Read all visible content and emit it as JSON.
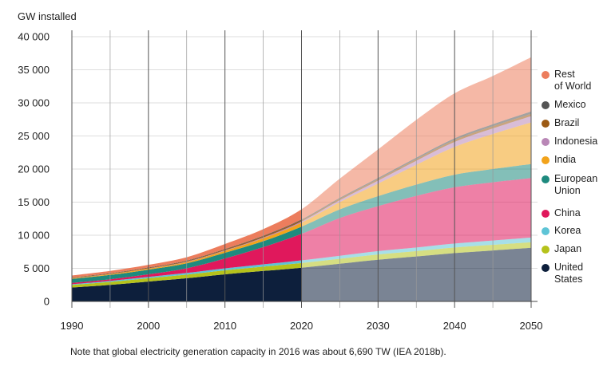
{
  "chart_data": {
    "type": "area",
    "stacked": true,
    "ylabel": "GW installed",
    "xlabel": "",
    "xlim": [
      1990,
      2050
    ],
    "ylim": [
      0,
      40000
    ],
    "x_ticks": [
      "1990",
      "2000",
      "2010",
      "2020",
      "2030",
      "2040",
      "2050"
    ],
    "y_ticks": [
      "0",
      "5 000",
      "10 000",
      "15 000",
      "20 000",
      "25 000",
      "30 000",
      "35 000",
      "40 000"
    ],
    "projection_start": 2020,
    "x": [
      1990,
      1995,
      2000,
      2005,
      2010,
      2015,
      2020,
      2025,
      2030,
      2035,
      2040,
      2045,
      2050
    ],
    "series": [
      {
        "name": "United States",
        "color": "#0d1f3c",
        "values": [
          2100,
          2500,
          3000,
          3500,
          4100,
          4600,
          5100,
          5700,
          6300,
          6800,
          7300,
          7700,
          8100
        ]
      },
      {
        "name": "Japan",
        "color": "#b5c21b",
        "values": [
          400,
          450,
          500,
          550,
          600,
          650,
          700,
          750,
          800,
          800,
          850,
          850,
          850
        ]
      },
      {
        "name": "Korea",
        "color": "#5ec4d6",
        "values": [
          100,
          150,
          200,
          250,
          300,
          350,
          400,
          450,
          500,
          550,
          600,
          650,
          700
        ]
      },
      {
        "name": "China",
        "color": "#e0185c",
        "values": [
          200,
          250,
          400,
          700,
          1500,
          2600,
          4000,
          5700,
          6800,
          7800,
          8500,
          8800,
          9000
        ]
      },
      {
        "name": "European Union",
        "color": "#1e8a7e",
        "values": [
          600,
          650,
          700,
          750,
          850,
          900,
          1100,
          1300,
          1500,
          1700,
          1900,
          2000,
          2100
        ]
      },
      {
        "name": "India",
        "color": "#f2a31b",
        "values": [
          100,
          120,
          150,
          200,
          300,
          450,
          600,
          1100,
          1900,
          3000,
          4200,
          5300,
          6300
        ]
      },
      {
        "name": "Indonesia",
        "color": "#b987b6",
        "values": [
          20,
          30,
          40,
          60,
          80,
          120,
          180,
          300,
          450,
          600,
          750,
          850,
          950
        ]
      },
      {
        "name": "Brazil",
        "color": "#9c5a14",
        "values": [
          60,
          70,
          80,
          100,
          120,
          150,
          170,
          200,
          230,
          260,
          290,
          320,
          350
        ]
      },
      {
        "name": "Mexico",
        "color": "#555555",
        "values": [
          40,
          50,
          60,
          70,
          80,
          100,
          120,
          150,
          180,
          220,
          260,
          300,
          350
        ]
      },
      {
        "name": "Rest of World",
        "color": "#ec7d5d",
        "values": [
          300,
          350,
          400,
          500,
          750,
          1000,
          1550,
          2900,
          4300,
          5700,
          6800,
          7300,
          8200
        ]
      }
    ]
  },
  "legend_title_order": [
    "Rest of World",
    "Mexico",
    "Brazil",
    "Indonesia",
    "India",
    "European Union",
    "China",
    "Korea",
    "Japan",
    "United States"
  ],
  "legend_labels": {
    "Rest of World": "Rest\nof World",
    "Mexico": "Mexico",
    "Brazil": "Brazil",
    "Indonesia": "Indonesia",
    "India": "India",
    "European Union": "European\nUnion",
    "China": "China",
    "Korea": "Korea",
    "Japan": "Japan",
    "United States": "United\nStates"
  },
  "note": "Note that global electricity generation capacity in 2016 was about 6,690 TW (IEA 2018b)."
}
